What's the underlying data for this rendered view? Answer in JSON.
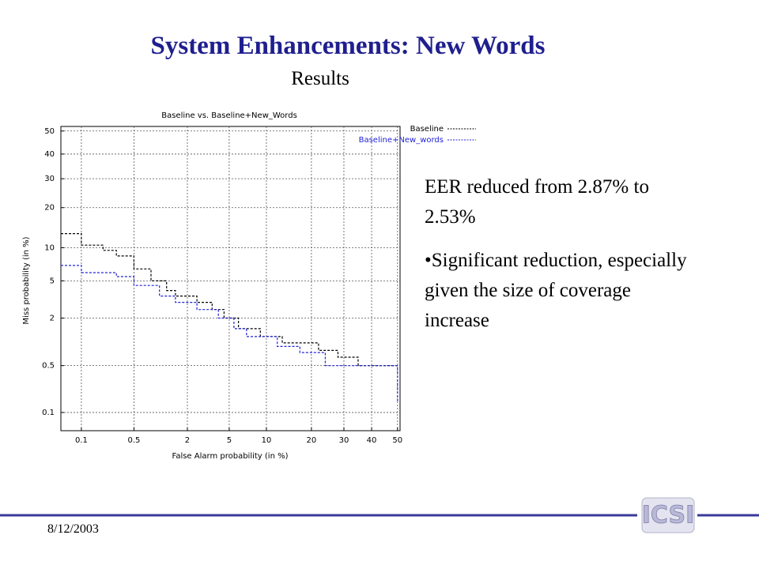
{
  "slide": {
    "title": "System Enhancements: New Words",
    "subtitle": "Results",
    "paragraphs": [
      "EER reduced from 2.87% to 2.53%",
      "•Significant reduction, especially given the size of coverage increase"
    ],
    "date": "8/12/2003",
    "logo": "ICSI"
  },
  "chart_data": {
    "type": "line",
    "title": "Baseline vs. Baseline+New_Words",
    "x_label": "False Alarm probability (in %)",
    "y_label": "Miss probability (in %)",
    "scale": "probit",
    "grid": true,
    "legend": "top-right",
    "line_style": "dashed",
    "xlim": [
      0.05,
      51
    ],
    "ylim": [
      0.05,
      52
    ],
    "xticks": [
      0.1,
      0.5,
      2,
      5,
      10,
      20,
      30,
      40,
      50
    ],
    "yticks": [
      0.1,
      0.5,
      2,
      5,
      10,
      20,
      30,
      40,
      50
    ],
    "series": [
      {
        "name": "Baseline",
        "color": "#000000",
        "x": [
          0.05,
          0.1,
          0.1,
          0.2,
          0.2,
          0.3,
          0.3,
          0.5,
          0.5,
          0.8,
          0.8,
          1.2,
          1.2,
          1.5,
          1.5,
          2.5,
          2.5,
          3.5,
          3.5,
          4.5,
          4.5,
          6,
          6,
          9,
          9,
          13,
          13,
          22,
          22,
          28,
          28,
          35,
          35,
          50
        ],
        "values": [
          13,
          13,
          10.5,
          10.5,
          9.5,
          9.5,
          8.5,
          8.5,
          6.5,
          6.5,
          5,
          5,
          4,
          4,
          3.5,
          3.5,
          3,
          3,
          2.5,
          2.5,
          2,
          2,
          1.5,
          1.5,
          1.2,
          1.2,
          1,
          1,
          0.8,
          0.8,
          0.65,
          0.65,
          0.5,
          0.5
        ]
      },
      {
        "name": "Baseline+New_words",
        "color": "#2323d8",
        "x": [
          0.05,
          0.1,
          0.1,
          0.3,
          0.3,
          0.5,
          0.5,
          1,
          1,
          1.5,
          1.5,
          2.5,
          2.5,
          4,
          4,
          5.5,
          5.5,
          7,
          7,
          12,
          12,
          17,
          17,
          24,
          24,
          50,
          50
        ],
        "values": [
          7,
          7,
          6,
          6,
          5.5,
          5.5,
          4.5,
          4.5,
          3.5,
          3.5,
          3,
          3,
          2.5,
          2.5,
          2,
          2,
          1.5,
          1.5,
          1.2,
          1.2,
          0.9,
          0.9,
          0.75,
          0.75,
          0.5,
          0.5,
          0.15
        ]
      }
    ]
  }
}
